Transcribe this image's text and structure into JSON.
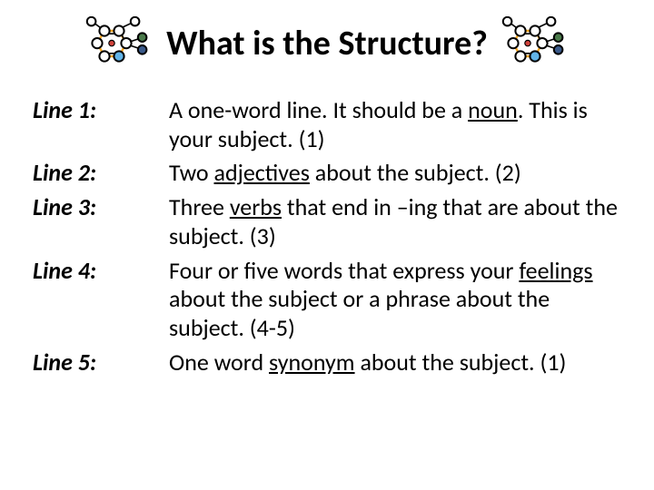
{
  "title": "What is the Structure?",
  "lines": [
    {
      "label": "Line 1:",
      "desc_html": "A one-word line.  It should be a <span class=\"u\">noun</span>. This is your subject. (1)"
    },
    {
      "label": "Line 2:",
      "desc_html": "Two <span class=\"u\">adjectives</span> about the subject. (2)"
    },
    {
      "label": "Line 3:",
      "desc_html": "Three <span class=\"u\">verbs</span> that end in –ing that are about the subject. (3)"
    },
    {
      "label": "Line 4:",
      "desc_html": "Four or five words that express your <span class=\"u\">feelings</span> about the subject or a phrase about the subject.  (4-5)"
    },
    {
      "label": "Line 5:",
      "desc_html": "One word <span class=\"u\">synonym</span> about the subject. (1)"
    }
  ],
  "molecule": {
    "ring_stroke": "#f5a623",
    "ring_fill": "#ffffff",
    "atom_stroke": "#000000",
    "atom_colors": [
      "#ffffff",
      "#ffffff",
      "#ffffff",
      "#4a90e2",
      "#7ed321",
      "#d0021b",
      "#4a4a4a"
    ]
  }
}
